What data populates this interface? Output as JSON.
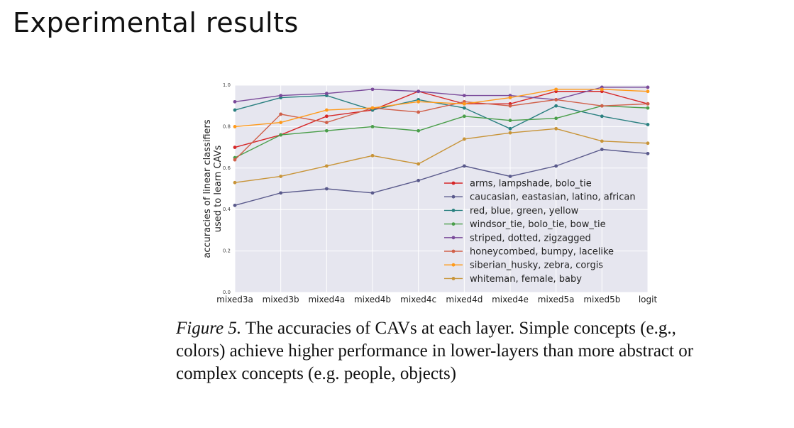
{
  "slide": {
    "title": "Experimental results"
  },
  "caption": {
    "figure_label": "Figure 5.",
    "text": " The accuracies of CAVs at each layer. Simple concepts (e.g., colors) achieve higher performance in lower-layers than more abstract or complex concepts (e.g. people, objects)"
  },
  "chart_data": {
    "type": "line",
    "ylabel_line1": "accuracies of linear classifiers",
    "ylabel_line2": "used to learn CAVs",
    "xlabel": "",
    "categories": [
      "mixed3a",
      "mixed3b",
      "mixed4a",
      "mixed4b",
      "mixed4c",
      "mixed4d",
      "mixed4e",
      "mixed5a",
      "mixed5b",
      "logit"
    ],
    "ylim": [
      0.0,
      1.0
    ],
    "yticks": [
      0.0,
      0.2,
      0.4,
      0.6,
      0.8,
      1.0
    ],
    "ytick_labels": [
      "0.0",
      "0.2",
      "0.4",
      "0.6",
      "0.8",
      "1.0"
    ],
    "grid": true,
    "legend_position": "lower-right",
    "background": "#e6e6ef",
    "series": [
      {
        "name": "arms, lampshade, bolo_tie",
        "color": "#d62728",
        "values": [
          0.7,
          0.76,
          0.85,
          0.88,
          0.97,
          0.91,
          0.91,
          0.97,
          0.97,
          0.91
        ]
      },
      {
        "name": "caucasian, eastasian, latino, african",
        "color": "#5a5a8c",
        "values": [
          0.42,
          0.48,
          0.5,
          0.48,
          0.54,
          0.61,
          0.56,
          0.61,
          0.69,
          0.67
        ]
      },
      {
        "name": "red, blue, green, yellow",
        "color": "#2a8080",
        "values": [
          0.88,
          0.94,
          0.95,
          0.88,
          0.93,
          0.89,
          0.79,
          0.9,
          0.85,
          0.81
        ]
      },
      {
        "name": "windsor_tie, bolo_tie, bow_tie",
        "color": "#4a9e4a",
        "values": [
          0.65,
          0.76,
          0.78,
          0.8,
          0.78,
          0.85,
          0.83,
          0.84,
          0.9,
          0.89
        ]
      },
      {
        "name": "striped, dotted, zigzagged",
        "color": "#7a4a9a",
        "values": [
          0.92,
          0.95,
          0.96,
          0.98,
          0.97,
          0.95,
          0.95,
          0.93,
          0.99,
          0.99
        ]
      },
      {
        "name": "honeycombed, bumpy, lacelike",
        "color": "#d0604a",
        "values": [
          0.64,
          0.86,
          0.82,
          0.89,
          0.87,
          0.92,
          0.9,
          0.93,
          0.9,
          0.91
        ]
      },
      {
        "name": "siberian_husky, zebra, corgis",
        "color": "#ff9a1a",
        "values": [
          0.8,
          0.82,
          0.88,
          0.89,
          0.92,
          0.91,
          0.94,
          0.98,
          0.98,
          0.97
        ]
      },
      {
        "name": "whiteman, female, baby",
        "color": "#c89438",
        "values": [
          0.53,
          0.56,
          0.61,
          0.66,
          0.62,
          0.74,
          0.77,
          0.79,
          0.73,
          0.72
        ]
      }
    ]
  }
}
